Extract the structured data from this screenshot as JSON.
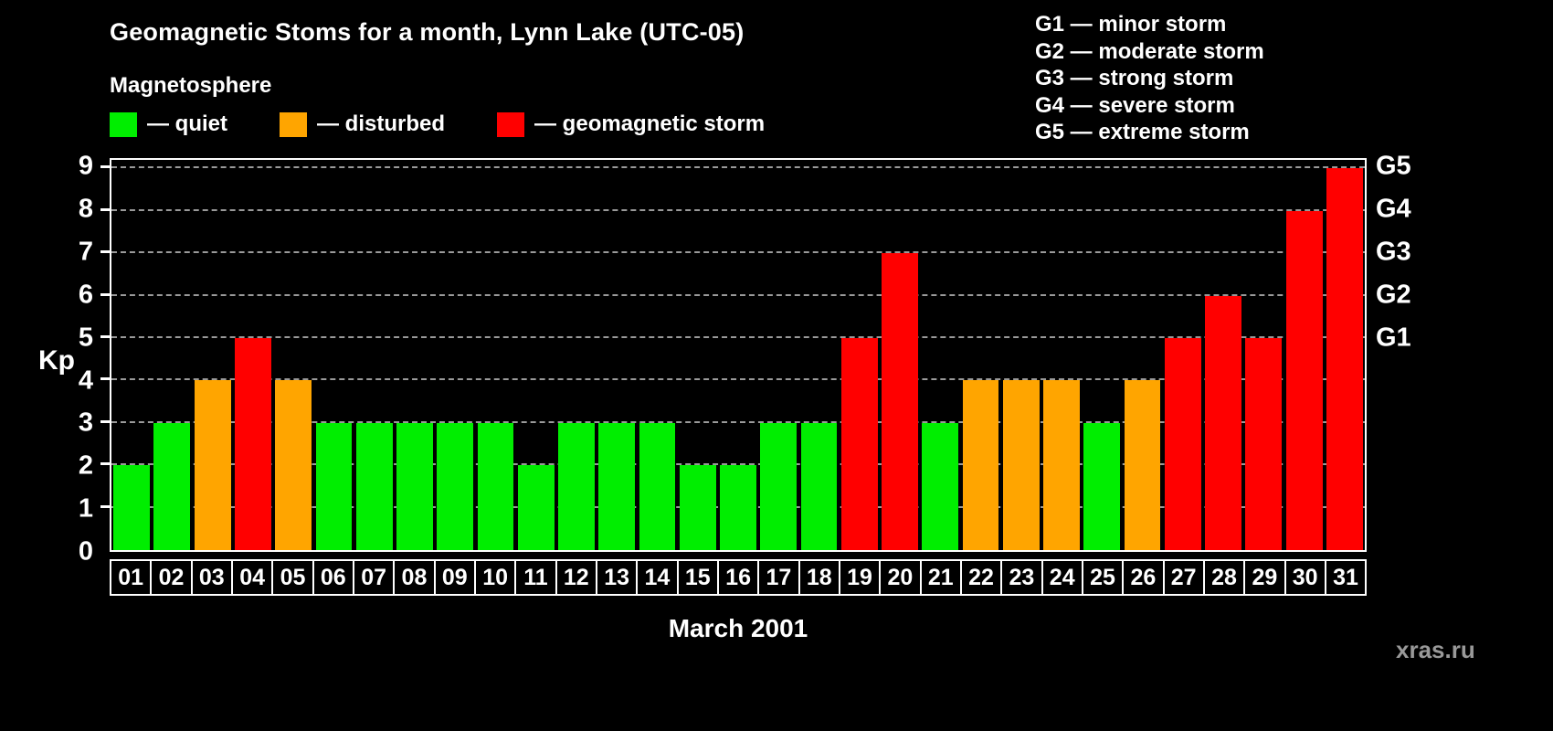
{
  "header": {
    "title": "Geomagnetic Stoms for a month, Lynn Lake (UTC-05)"
  },
  "legend": {
    "title": "Magnetosphere",
    "items": [
      {
        "name": "quiet",
        "label": "— quiet",
        "color": "#00ee00"
      },
      {
        "name": "disturbed",
        "label": "— disturbed",
        "color": "#ffa500"
      },
      {
        "name": "storm",
        "label": "— geomagnetic storm",
        "color": "#ff0000"
      }
    ]
  },
  "g_scale_legend": {
    "lines": [
      "G1 — minor storm",
      "G2 — moderate storm",
      "G3 — strong storm",
      "G4 — severe storm",
      "G5 — extreme storm"
    ]
  },
  "footer": {
    "xlabel": "March 2001",
    "watermark": "xras.ru"
  },
  "chart_data": {
    "type": "bar",
    "title": "Geomagnetic Stoms for a month, Lynn Lake (UTC-05)",
    "xlabel": "March 2001",
    "ylabel": "Kp",
    "ylim": [
      0,
      9
    ],
    "yticks": [
      0,
      1,
      2,
      3,
      4,
      5,
      6,
      7,
      8,
      9
    ],
    "grid": "horizontal-dashed",
    "legend_position": "top",
    "categories": [
      "01",
      "02",
      "03",
      "04",
      "05",
      "06",
      "07",
      "08",
      "09",
      "10",
      "11",
      "12",
      "13",
      "14",
      "15",
      "16",
      "17",
      "18",
      "19",
      "20",
      "21",
      "22",
      "23",
      "24",
      "25",
      "26",
      "27",
      "28",
      "29",
      "30",
      "31"
    ],
    "values": [
      2,
      3,
      4,
      5,
      4,
      3,
      3,
      3,
      3,
      3,
      2,
      3,
      3,
      3,
      2,
      2,
      3,
      3,
      5,
      7,
      3,
      4,
      4,
      4,
      3,
      4,
      5,
      6,
      5,
      8,
      9
    ],
    "levels": [
      "quiet",
      "quiet",
      "disturbed",
      "storm",
      "disturbed",
      "quiet",
      "quiet",
      "quiet",
      "quiet",
      "quiet",
      "quiet",
      "quiet",
      "quiet",
      "quiet",
      "quiet",
      "quiet",
      "quiet",
      "quiet",
      "storm",
      "storm",
      "quiet",
      "disturbed",
      "disturbed",
      "disturbed",
      "quiet",
      "disturbed",
      "storm",
      "storm",
      "storm",
      "storm",
      "storm"
    ],
    "colors": {
      "quiet": "#00ee00",
      "disturbed": "#ffa500",
      "storm": "#ff0000"
    },
    "right_axis": {
      "labels": [
        "G1",
        "G2",
        "G3",
        "G4",
        "G5"
      ],
      "values": [
        5,
        6,
        7,
        8,
        9
      ]
    }
  }
}
